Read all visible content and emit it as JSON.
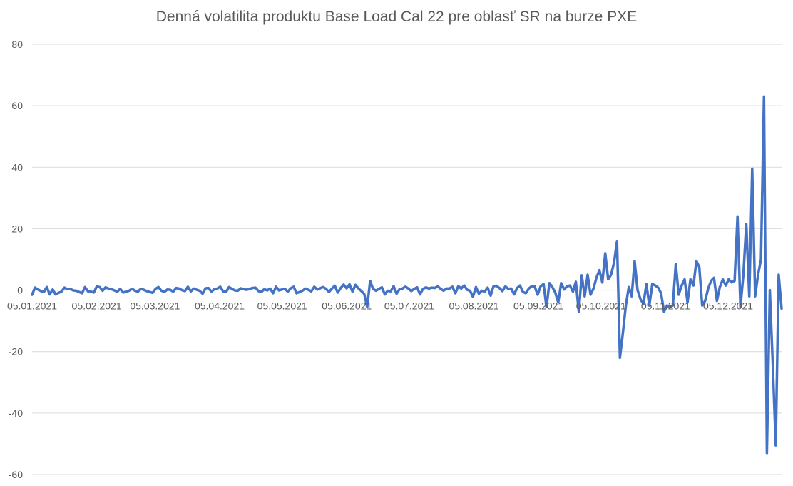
{
  "chart_data": {
    "type": "line",
    "title": "Denná volatilita produktu Base Load Cal 22 pre oblasť SR na burze PXE",
    "xlabel": "",
    "ylabel": "",
    "ylim": [
      -60,
      80
    ],
    "yticks": [
      80,
      60,
      40,
      20,
      0,
      -20,
      -40,
      -60
    ],
    "grid": true,
    "legend": "none",
    "x_start": "05.01.2021",
    "x_end": "31.12.2021",
    "xtick_labels": [
      "05.01.2021",
      "05.02.2021",
      "05.03.2021",
      "05.04.2021",
      "05.05.2021",
      "05.06.2021",
      "05.07.2021",
      "05.08.2021",
      "05.09.2021",
      "05.10.2021",
      "05.11.2021",
      "05.12.2021"
    ],
    "series": [
      {
        "color": "#4472c4",
        "values": [
          -1.5,
          0.8,
          0.2,
          -0.3,
          -0.6,
          1.0,
          -1.4,
          0.2,
          -1.4,
          -0.9,
          -0.5,
          0.8,
          0.3,
          0.4,
          -0.1,
          -0.2,
          -0.6,
          -1.0,
          1.0,
          -0.4,
          -0.5,
          -0.8,
          1.2,
          1.0,
          -0.2,
          0.9,
          0.5,
          0.3,
          -0.1,
          -0.5,
          0.4,
          -0.8,
          -0.5,
          -0.2,
          0.4,
          -0.2,
          -0.5,
          0.4,
          0.1,
          -0.3,
          -0.6,
          -0.9,
          0.4,
          1.0,
          -0.2,
          -0.6,
          0.2,
          0.1,
          -0.5,
          0.7,
          0.5,
          0.0,
          -0.3,
          1.1,
          -0.4,
          0.5,
          0.1,
          -0.2,
          -1.2,
          0.6,
          0.7,
          -0.5,
          0.3,
          0.5,
          1.1,
          -0.4,
          -0.6,
          1.0,
          0.4,
          -0.1,
          -0.2,
          0.6,
          0.3,
          0.1,
          0.4,
          0.7,
          0.8,
          -0.3,
          -0.6,
          0.3,
          -0.1,
          0.5,
          -1.0,
          1.1,
          -0.1,
          0.2,
          0.4,
          -0.5,
          0.6,
          1.1,
          -1.0,
          -0.6,
          -0.2,
          0.5,
          0.1,
          -0.4,
          1.1,
          0.2,
          0.6,
          1.0,
          0.4,
          -0.6,
          0.5,
          1.4,
          -0.8,
          0.7,
          1.8,
          0.6,
          1.9,
          -0.5,
          1.7,
          0.6,
          -0.3,
          -1.2,
          -5.5,
          3.0,
          0.4,
          -0.2,
          0.4,
          0.9,
          -1.4,
          -0.2,
          -0.4,
          1.3,
          -1.2,
          0.3,
          0.5,
          1.1,
          0.5,
          -0.3,
          0.4,
          0.9,
          -1.4,
          0.4,
          0.9,
          0.5,
          0.8,
          0.7,
          1.2,
          0.4,
          -0.2,
          0.5,
          0.5,
          1.1,
          -1.0,
          1.3,
          0.5,
          1.5,
          0.1,
          -0.2,
          -2.2,
          1.0,
          -1.2,
          -0.2,
          -0.5,
          0.8,
          -1.8,
          1.3,
          1.4,
          0.7,
          -0.3,
          1.2,
          0.4,
          0.5,
          -1.4,
          0.7,
          1.5,
          -0.6,
          -1.0,
          0.5,
          1.3,
          1.2,
          -1.5,
          1.2,
          2.0,
          -5.5,
          2.3,
          1.0,
          -0.8,
          -4.0,
          2.3,
          0.2,
          1.2,
          1.5,
          -0.5,
          2.7,
          -7.0,
          4.8,
          -2.0,
          5.0,
          -1.5,
          0.5,
          4.0,
          6.5,
          2.5,
          12.0,
          3.5,
          5.0,
          9.0,
          16.0,
          -22.0,
          -14.0,
          -5.0,
          1.0,
          -2.0,
          9.5,
          0.0,
          -3.0,
          -4.5,
          2.0,
          -5.0,
          2.0,
          1.5,
          0.8,
          -1.0,
          -7.0,
          -5.0,
          -5.5,
          -5.0,
          8.5,
          -1.5,
          1.5,
          3.5,
          -4.0,
          3.5,
          1.5,
          9.5,
          7.5,
          -5.0,
          -3.5,
          0.5,
          3.0,
          4.0,
          -3.5,
          1.0,
          3.5,
          1.5,
          3.5,
          2.5,
          3.0,
          24.0,
          -5.5,
          5.0,
          21.5,
          -2.0,
          39.5,
          -2.0,
          5.0,
          10.0,
          63.0,
          -53.0,
          0.0,
          -24.0,
          -50.5,
          5.0,
          -6.0
        ]
      }
    ]
  }
}
